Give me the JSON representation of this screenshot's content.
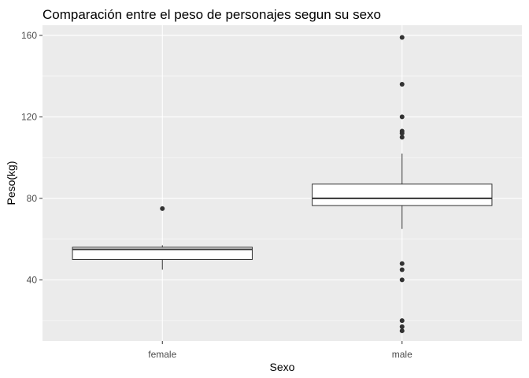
{
  "chart_data": {
    "type": "boxplot",
    "title": "Comparación entre el peso de personajes segun su sexo",
    "xlabel": "Sexo",
    "ylabel": "Peso(kg)",
    "categories": [
      "female",
      "male"
    ],
    "ylim": [
      10,
      165
    ],
    "yticks": [
      40,
      80,
      120,
      160
    ],
    "yticks_minor": [
      20,
      60,
      100,
      140
    ],
    "grid": true,
    "boxes": [
      {
        "category": "female",
        "whisker_low": 45,
        "q1": 50,
        "median": 55,
        "q3": 56,
        "whisker_high": 57,
        "outliers": [
          75
        ]
      },
      {
        "category": "male",
        "whisker_low": 65,
        "q1": 76.5,
        "median": 80,
        "q3": 87,
        "whisker_high": 102,
        "outliers": [
          159,
          136,
          120,
          113,
          112,
          110,
          48,
          45,
          40,
          20,
          17,
          15
        ]
      }
    ],
    "colors": {
      "panel_background": "#ebebeb",
      "grid_major": "#ffffff",
      "box_fill": "#ffffff",
      "box_line": "#333333",
      "point": "#333333"
    }
  }
}
